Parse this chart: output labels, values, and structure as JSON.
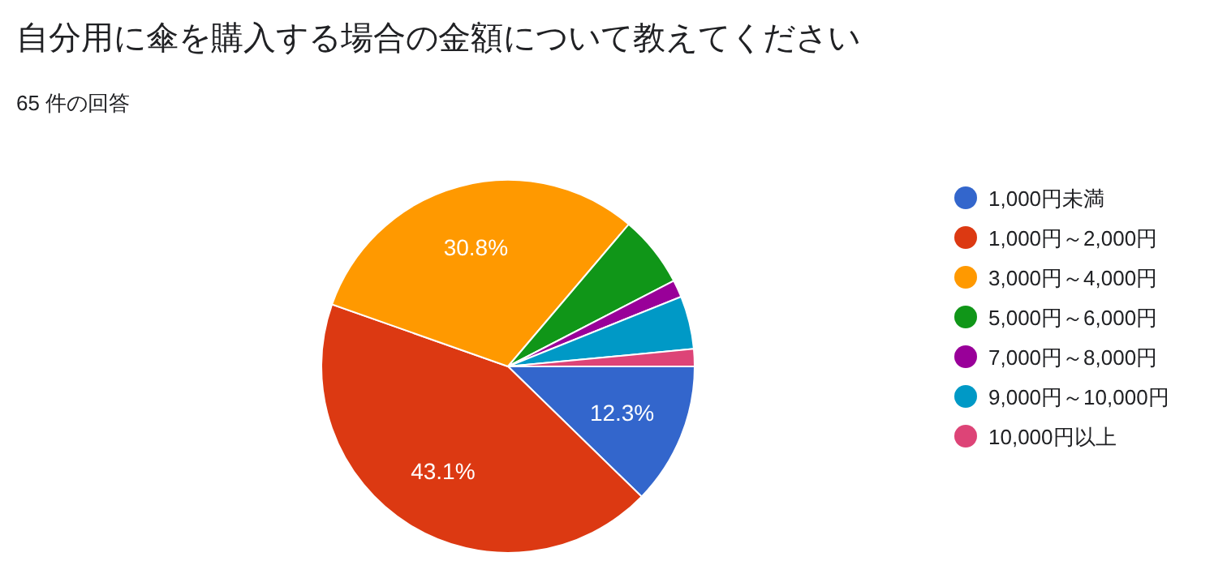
{
  "chart_data": {
    "type": "pie",
    "title": "自分用に傘を購入する場合の金額について教えてください",
    "subtitle": "65 件の回答",
    "categories": [
      "1,000円未満",
      "1,000円～2,000円",
      "3,000円～4,000円",
      "5,000円～6,000円",
      "7,000円～8,000円",
      "9,000円～10,000円",
      "10,000円以上"
    ],
    "values": [
      12.3,
      43.1,
      30.8,
      6.2,
      1.5,
      4.6,
      1.5
    ],
    "colors": [
      "#3366cc",
      "#dc3912",
      "#ff9900",
      "#109618",
      "#990099",
      "#0099c6",
      "#dd4477"
    ],
    "value_labels": [
      "12.3%",
      "43.1%",
      "30.8%",
      null,
      null,
      null,
      null
    ],
    "legend": "right"
  }
}
